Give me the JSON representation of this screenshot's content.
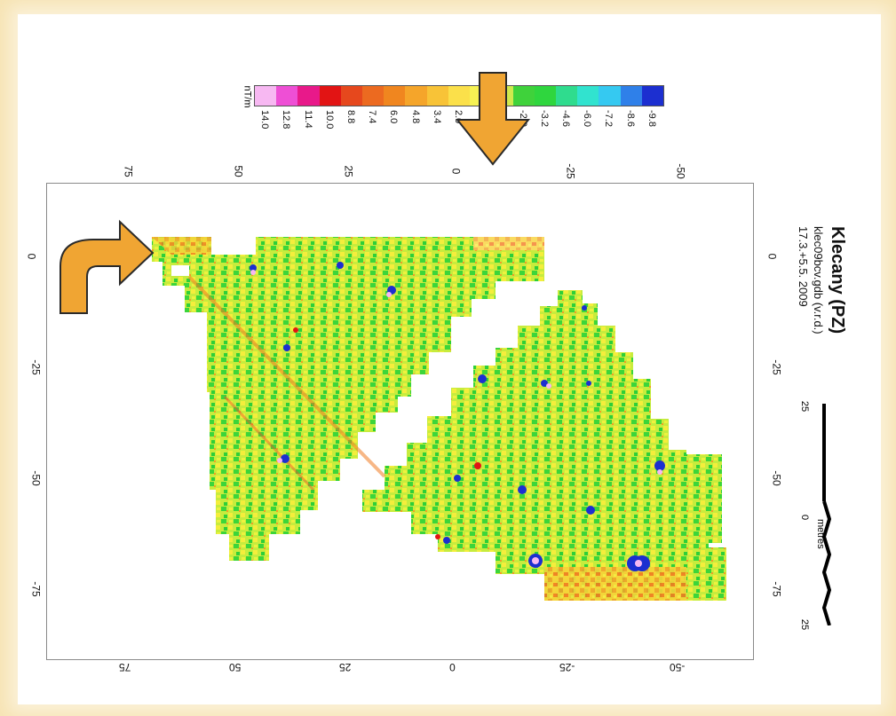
{
  "title": "Klecany (PZ)",
  "file": "klec09bcv.gdb (v.r.d.)",
  "dates": "17.3.+5.5. 2009",
  "units": "nT/m",
  "scale_bar": {
    "unit": "metres",
    "labels": [
      "25",
      "0",
      "25"
    ]
  },
  "colorbar": {
    "labels": [
      "14.0",
      "12.8",
      "11.4",
      "10.0",
      "8.8",
      "7.4",
      "6.0",
      "4.8",
      "3.4",
      "2.0",
      "",
      "",
      "-2.0",
      "-3.2",
      "-4.6",
      "-6.0",
      "-7.2",
      "-8.6",
      "-9.8"
    ],
    "colors": [
      "#f7b8f2",
      "#ee4fd5",
      "#e8198a",
      "#e21414",
      "#e6481d",
      "#ec6a20",
      "#f0861f",
      "#f5a52a",
      "#f8c337",
      "#fbe04a",
      "#f6f253",
      "#cfe94e",
      "#3fd23b",
      "#2fd63e",
      "#2fdc8e",
      "#31e3cf",
      "#35c9f1",
      "#2f80e9",
      "#1c2fd0"
    ]
  },
  "axes": {
    "top": [
      "75",
      "50",
      "25",
      "0",
      "-25",
      "-50"
    ],
    "left": [
      "0",
      "-25",
      "-50",
      "-75"
    ],
    "right": [
      "0",
      "-25",
      "-50",
      "-75"
    ],
    "bottom": [
      "75",
      "50",
      "25",
      "0",
      "-25",
      "-50"
    ]
  },
  "annotations": {
    "down_arrow": "orange-down-arrow",
    "curved_arrow": "orange-curved-arrow"
  }
}
